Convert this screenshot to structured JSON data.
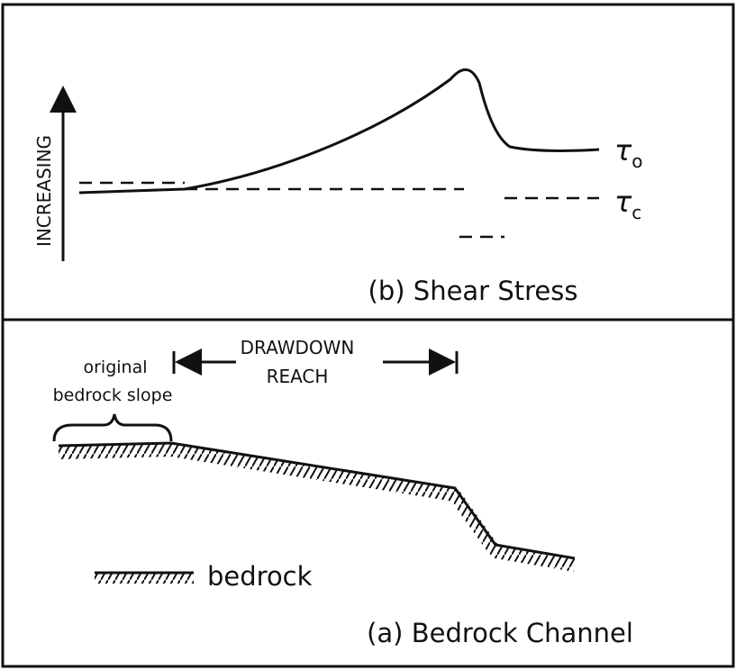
{
  "shear_panel": {
    "axis_label": "INCREASING",
    "curve_labels": [
      {
        "symbol": "τ",
        "subscript": "o"
      },
      {
        "symbol": "τ",
        "subscript": "c"
      }
    ],
    "caption": "(b) Shear Stress"
  },
  "channel_panel": {
    "original_slope": [
      "original",
      "bedrock slope"
    ],
    "drawdown_reach": [
      "DRAWDOWN",
      "REACH"
    ],
    "legend": "bedrock",
    "caption": "(a) Bedrock Channel"
  }
}
